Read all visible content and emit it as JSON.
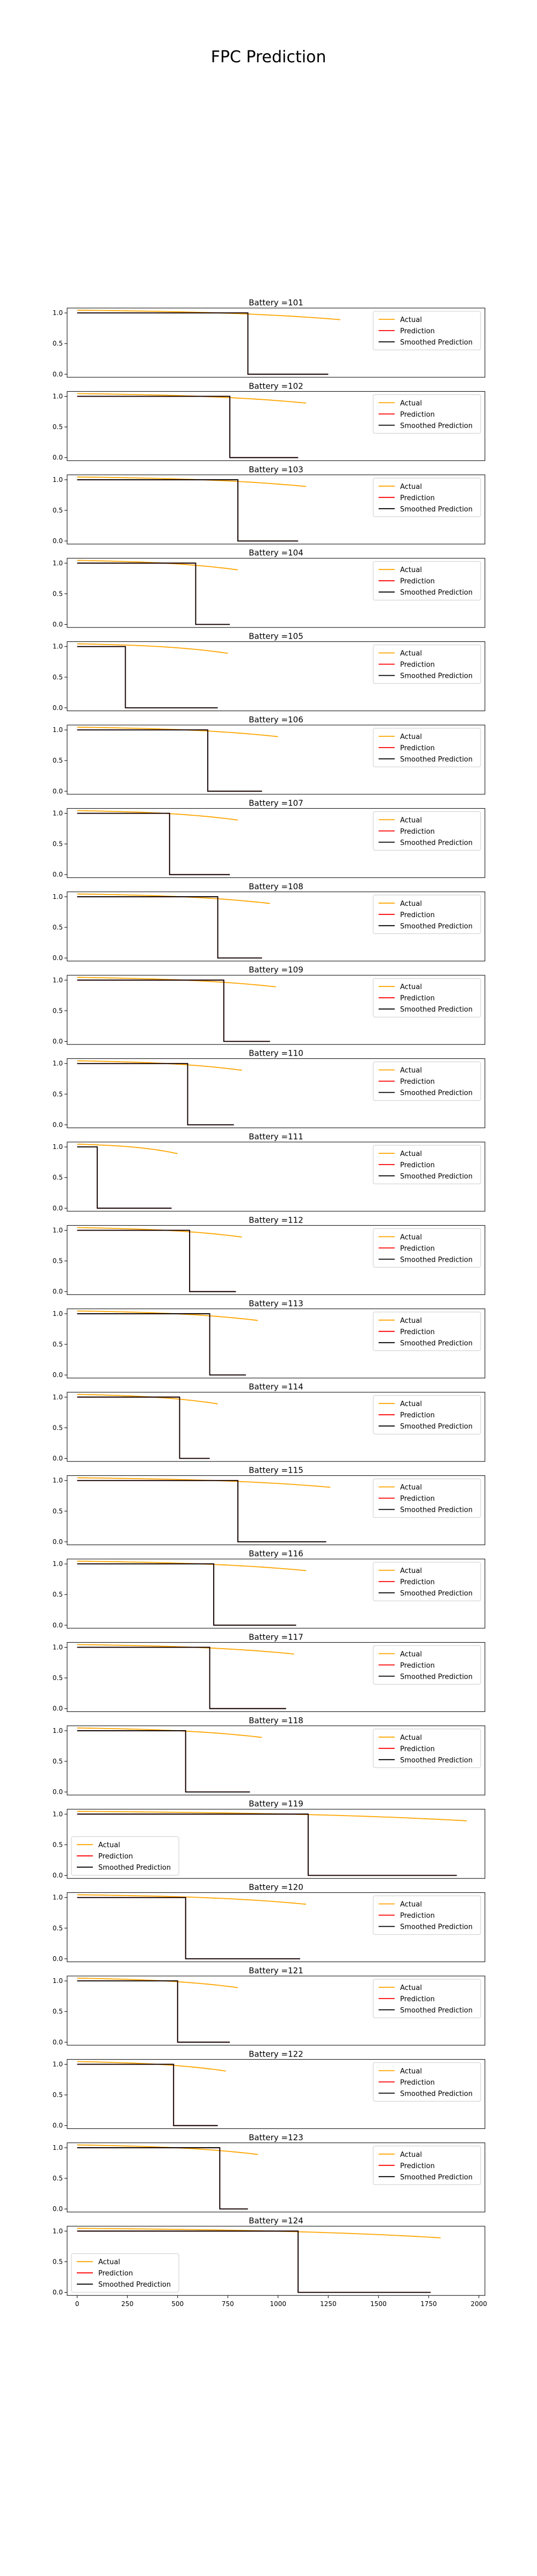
{
  "title": "FPC Prediction",
  "colors": {
    "actual": "#FFA500",
    "prediction": "#FF0000",
    "smoothed": "#000000"
  },
  "chart_data": {
    "type": "line",
    "xlim": [
      -50,
      2030
    ],
    "ylim": [
      -0.05,
      1.08
    ],
    "x_ticks": [
      0,
      250,
      500,
      750,
      1000,
      1250,
      1500,
      1750,
      2000
    ],
    "x_tick_labels": [
      "0",
      "250",
      "500",
      "750",
      "1000",
      "1250",
      "1500",
      "1750",
      "2000"
    ],
    "y_ticks": [
      0.0,
      0.5,
      1.0
    ],
    "y_tick_labels": [
      "0.0",
      "0.5",
      "1.0"
    ],
    "grid": false,
    "series_names": [
      "Actual",
      "Prediction",
      "Smoothed Prediction"
    ],
    "panels": [
      {
        "title": "Battery =101",
        "legend": "top-right",
        "cycles": 1310,
        "actual_end": 0.89,
        "knee": 850,
        "pred_end": 1250
      },
      {
        "title": "Battery =102",
        "legend": "top-right",
        "cycles": 1140,
        "actual_end": 0.89,
        "knee": 760,
        "pred_end": 1100
      },
      {
        "title": "Battery =103",
        "legend": "top-right",
        "cycles": 1140,
        "actual_end": 0.89,
        "knee": 800,
        "pred_end": 1100
      },
      {
        "title": "Battery =104",
        "legend": "top-right",
        "cycles": 800,
        "actual_end": 0.89,
        "knee": 590,
        "pred_end": 760
      },
      {
        "title": "Battery =105",
        "legend": "top-right",
        "cycles": 750,
        "actual_end": 0.89,
        "knee": 240,
        "pred_end": 700
      },
      {
        "title": "Battery =106",
        "legend": "top-right",
        "cycles": 1000,
        "actual_end": 0.89,
        "knee": 650,
        "pred_end": 920
      },
      {
        "title": "Battery =107",
        "legend": "top-right",
        "cycles": 800,
        "actual_end": 0.89,
        "knee": 460,
        "pred_end": 760
      },
      {
        "title": "Battery =108",
        "legend": "top-right",
        "cycles": 960,
        "actual_end": 0.89,
        "knee": 700,
        "pred_end": 920
      },
      {
        "title": "Battery =109",
        "legend": "top-right",
        "cycles": 990,
        "actual_end": 0.89,
        "knee": 730,
        "pred_end": 960
      },
      {
        "title": "Battery =110",
        "legend": "top-right",
        "cycles": 820,
        "actual_end": 0.89,
        "knee": 550,
        "pred_end": 780
      },
      {
        "title": "Battery =111",
        "legend": "top-right",
        "cycles": 500,
        "actual_end": 0.89,
        "knee": 100,
        "pred_end": 470
      },
      {
        "title": "Battery =112",
        "legend": "top-right",
        "cycles": 820,
        "actual_end": 0.89,
        "knee": 560,
        "pred_end": 790
      },
      {
        "title": "Battery =113",
        "legend": "top-right",
        "cycles": 900,
        "actual_end": 0.89,
        "knee": 660,
        "pred_end": 840
      },
      {
        "title": "Battery =114",
        "legend": "top-right",
        "cycles": 700,
        "actual_end": 0.89,
        "knee": 510,
        "pred_end": 660
      },
      {
        "title": "Battery =115",
        "legend": "top-right",
        "cycles": 1260,
        "actual_end": 0.89,
        "knee": 800,
        "pred_end": 1240
      },
      {
        "title": "Battery =116",
        "legend": "top-right",
        "cycles": 1140,
        "actual_end": 0.89,
        "knee": 680,
        "pred_end": 1090
      },
      {
        "title": "Battery =117",
        "legend": "top-right",
        "cycles": 1080,
        "actual_end": 0.89,
        "knee": 660,
        "pred_end": 1040
      },
      {
        "title": "Battery =118",
        "legend": "top-right",
        "cycles": 920,
        "actual_end": 0.89,
        "knee": 540,
        "pred_end": 860
      },
      {
        "title": "Battery =119",
        "legend": "bottom-left",
        "cycles": 1940,
        "actual_end": 0.89,
        "knee": 1150,
        "pred_end": 1890
      },
      {
        "title": "Battery =120",
        "legend": "top-right",
        "cycles": 1140,
        "actual_end": 0.89,
        "knee": 540,
        "pred_end": 1110
      },
      {
        "title": "Battery =121",
        "legend": "top-right",
        "cycles": 800,
        "actual_end": 0.89,
        "knee": 500,
        "pred_end": 760
      },
      {
        "title": "Battery =122",
        "legend": "top-right",
        "cycles": 740,
        "actual_end": 0.89,
        "knee": 480,
        "pred_end": 700
      },
      {
        "title": "Battery =123",
        "legend": "top-right",
        "cycles": 900,
        "actual_end": 0.89,
        "knee": 710,
        "pred_end": 850
      },
      {
        "title": "Battery =124",
        "legend": "bottom-left",
        "cycles": 1810,
        "actual_end": 0.89,
        "knee": 1100,
        "pred_end": 1760
      }
    ]
  }
}
